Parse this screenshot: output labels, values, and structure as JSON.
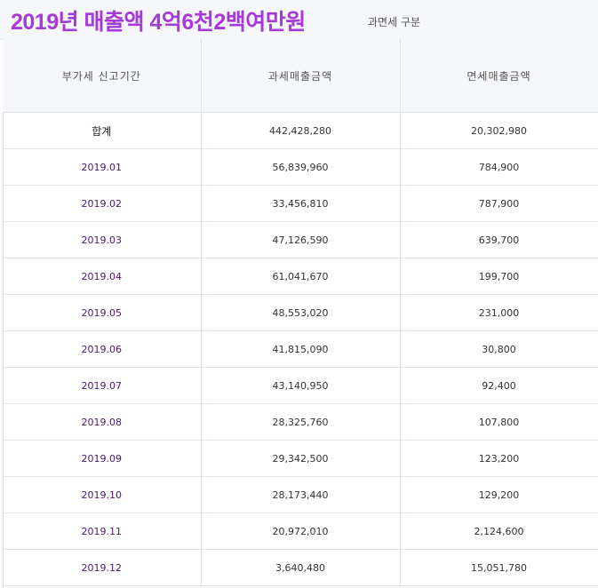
{
  "title": "2019년 매출액 4억6천2백여만원",
  "sub_label": "과면세 구분",
  "table": {
    "headers": [
      "부가세 신고기간",
      "과세매출금액",
      "면세매출금액"
    ],
    "rows": [
      {
        "period": "합계",
        "taxable": "442,428,280",
        "exempt": "20,302,980"
      },
      {
        "period": "2019.01",
        "taxable": "56,839,960",
        "exempt": "784,900"
      },
      {
        "period": "2019.02",
        "taxable": "33,456,810",
        "exempt": "787,900"
      },
      {
        "period": "2019.03",
        "taxable": "47,126,590",
        "exempt": "639,700"
      },
      {
        "period": "2019.04",
        "taxable": "61,041,670",
        "exempt": "199,700"
      },
      {
        "period": "2019.05",
        "taxable": "48,553,020",
        "exempt": "231,000"
      },
      {
        "period": "2019.06",
        "taxable": "41,815,090",
        "exempt": "30,800"
      },
      {
        "period": "2019.07",
        "taxable": "43,140,950",
        "exempt": "92,400"
      },
      {
        "period": "2019.08",
        "taxable": "28,325,760",
        "exempt": "107,800"
      },
      {
        "period": "2019.09",
        "taxable": "29,342,500",
        "exempt": "123,200"
      },
      {
        "period": "2019.10",
        "taxable": "28,173,440",
        "exempt": "129,200"
      },
      {
        "period": "2019.11",
        "taxable": "20,972,010",
        "exempt": "2,124,600"
      },
      {
        "period": "2019.12",
        "taxable": "3,640,480",
        "exempt": "15,051,780"
      }
    ]
  },
  "colors": {
    "title": "#a53ad8",
    "period_text": "#4b1869",
    "header_bg": "#f6f7fb",
    "border": "#e2e3ea"
  }
}
